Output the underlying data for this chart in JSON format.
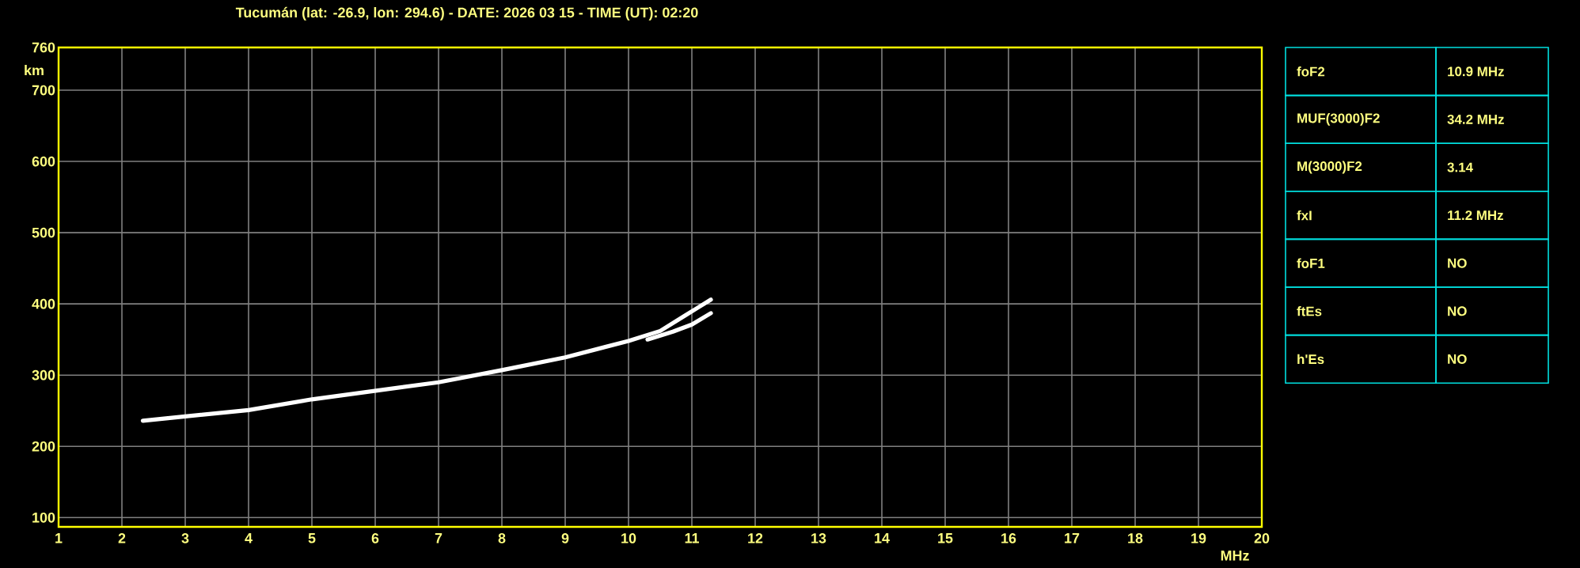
{
  "chart_data": [
    {
      "type": "line",
      "title": "Tucumán (lat: -26.9, lon: 294.6) - DATE: 2026 03 15 - TIME (UT): 02:20",
      "xlabel": "MHz",
      "ylabel": "km",
      "xlim": [
        1,
        20
      ],
      "ylim": [
        87,
        760
      ],
      "xticks": [
        1,
        2,
        3,
        4,
        5,
        6,
        7,
        8,
        9,
        10,
        11,
        12,
        13,
        14,
        15,
        16,
        17,
        18,
        19,
        20
      ],
      "yticks": [
        100,
        200,
        300,
        400,
        500,
        600,
        700,
        760
      ],
      "grid": true,
      "marker": "none",
      "line_style": "solid",
      "series": [
        {
          "color": "#ffffff",
          "x": [
            2.33,
            3.0,
            4.0,
            5.0,
            6.0,
            7.0,
            8.0,
            9.0,
            10.0,
            10.5,
            10.9,
            11.1,
            11.3
          ],
          "values": [
            236,
            242,
            251,
            266,
            278,
            290,
            307,
            325,
            348,
            362,
            384,
            395,
            406
          ]
        },
        {
          "color": "#ffffff",
          "x": [
            10.3,
            10.7,
            11.0,
            11.3
          ],
          "values": [
            350,
            361,
            371,
            387
          ]
        }
      ]
    },
    {
      "type": "other",
      "categories": [
        "foF2",
        "MUF(3000)F2",
        "M(3000)F2",
        "fxI",
        "foF1",
        "ftEs",
        "h'Es"
      ],
      "value_labels": [
        "10.9 MHz",
        "34.2 MHz",
        "3.14",
        "11.2 MHz",
        "NO",
        "NO",
        "NO"
      ]
    }
  ]
}
